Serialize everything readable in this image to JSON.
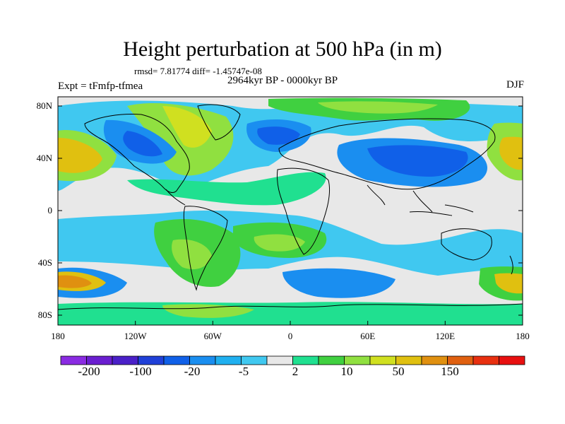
{
  "title": "Height perturbation at 500 hPa (in m)",
  "stats": "rmsd= 7.81774 diff= -1.45747e-08",
  "period": "2964kyr BP - 0000kyr BP",
  "experiment": "Expt = tFmfp-tfmea",
  "season": "DJF",
  "lat_ticks": [
    "80N",
    "40N",
    "0",
    "40S",
    "80S"
  ],
  "lon_ticks": [
    "180",
    "120W",
    "60W",
    "0",
    "60E",
    "120E",
    "180"
  ],
  "colorbar": {
    "labels": [
      "-200",
      "-100",
      "-20",
      "-5",
      "2",
      "10",
      "50",
      "150"
    ],
    "colors": [
      "#8a2be2",
      "#6a1ed0",
      "#4a20c8",
      "#2040d8",
      "#1060e8",
      "#1a8ef0",
      "#20b0f0",
      "#40c8f0",
      "#e8e8e8",
      "#20e090",
      "#40d040",
      "#90e040",
      "#d0e020",
      "#e0c010",
      "#e09010",
      "#e06010",
      "#e83010",
      "#e81010"
    ]
  }
}
